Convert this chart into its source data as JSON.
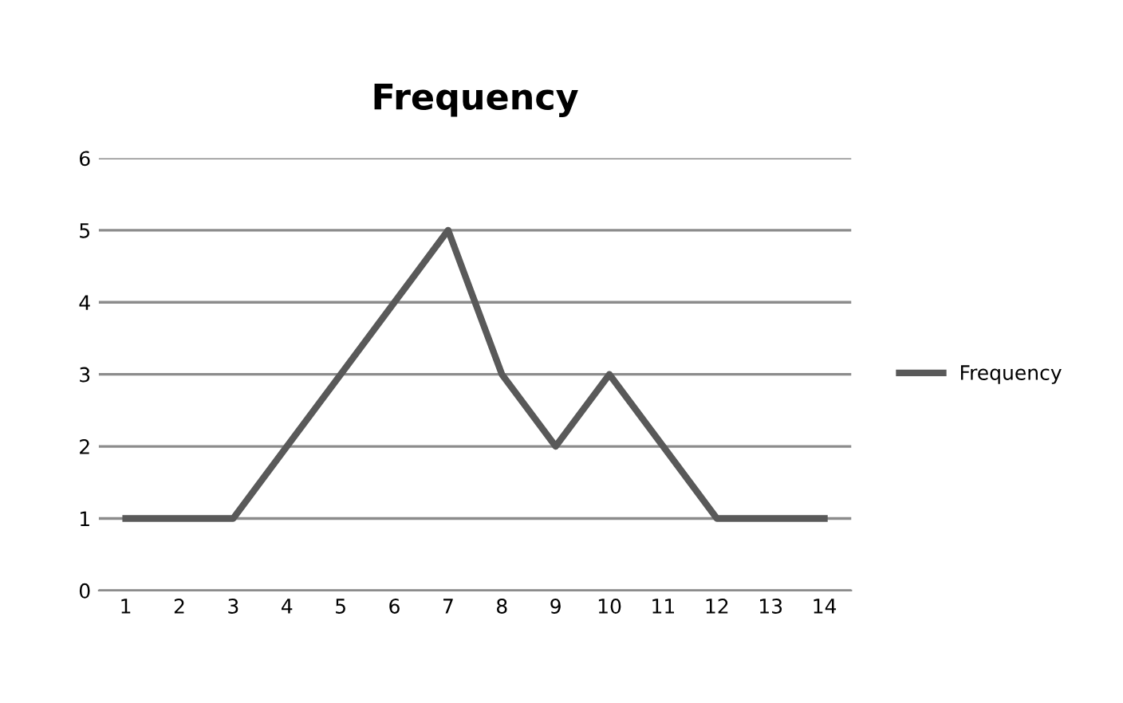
{
  "chart_data": {
    "type": "line",
    "title": "Frequency",
    "categories": [
      "1",
      "2",
      "3",
      "4",
      "5",
      "6",
      "7",
      "8",
      "9",
      "10",
      "11",
      "12",
      "13",
      "14"
    ],
    "series": [
      {
        "name": "Frequency",
        "color": "#595959",
        "values": [
          1,
          1,
          1,
          2,
          3,
          4,
          5,
          3,
          2,
          3,
          2,
          1,
          1,
          1
        ]
      }
    ],
    "ylim": [
      0,
      6
    ],
    "yticks": [
      0,
      1,
      2,
      3,
      4,
      5,
      6
    ],
    "grid": "y",
    "legend": "right",
    "marker": "none",
    "line_style": "solid"
  }
}
